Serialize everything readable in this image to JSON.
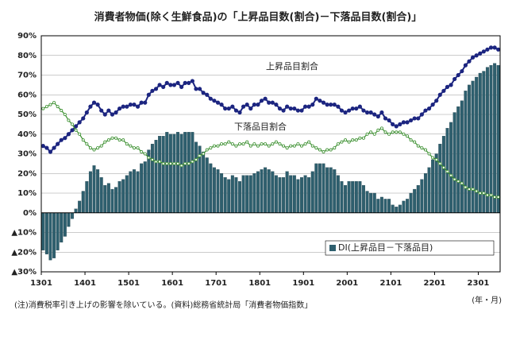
{
  "chart_data": {
    "type": "combo",
    "title": "消費者物価(除く生鮮食品)の「上昇品目数(割合)－下落品目数(割合)」",
    "annotations": [
      "上昇品目割合",
      "下落品目割合"
    ],
    "footnote": "(注)消費税率引き上げの影響を除いている。(資料)総務省統計局「消費者物価指数」",
    "x_unit": "(年・月)",
    "categories": [
      "1301",
      null,
      null,
      null,
      null,
      null,
      null,
      null,
      null,
      null,
      null,
      null,
      "1401",
      null,
      null,
      null,
      null,
      null,
      null,
      null,
      null,
      null,
      null,
      null,
      "1501",
      null,
      null,
      null,
      null,
      null,
      null,
      null,
      null,
      null,
      null,
      null,
      "1601",
      null,
      null,
      null,
      null,
      null,
      null,
      null,
      null,
      null,
      null,
      null,
      "1701",
      null,
      null,
      null,
      null,
      null,
      null,
      null,
      null,
      null,
      null,
      null,
      "1801",
      null,
      null,
      null,
      null,
      null,
      null,
      null,
      null,
      null,
      null,
      null,
      "1901",
      null,
      null,
      null,
      null,
      null,
      null,
      null,
      null,
      null,
      null,
      null,
      "2001",
      null,
      null,
      null,
      null,
      null,
      null,
      null,
      null,
      null,
      null,
      null,
      "2101",
      null,
      null,
      null,
      null,
      null,
      null,
      null,
      null,
      null,
      null,
      null,
      "2201",
      null,
      null,
      null,
      null,
      null,
      null,
      null,
      null,
      null,
      null,
      null,
      "2301",
      null,
      null,
      null,
      null,
      null
    ],
    "series": [
      {
        "name": "DI(上昇品目－下落品目)",
        "type": "bar",
        "color": "#2e5f6e",
        "values": [
          -19,
          -21,
          -24,
          -23,
          -19,
          -15,
          -12,
          -7,
          -3,
          2,
          6,
          11,
          16,
          21,
          24,
          22,
          18,
          14,
          15,
          12,
          13,
          16,
          17,
          19,
          21,
          22,
          21,
          25,
          26,
          32,
          35,
          37,
          39,
          39,
          41,
          40,
          40,
          41,
          40,
          41,
          41,
          41,
          36,
          34,
          31,
          28,
          25,
          23,
          22,
          20,
          18,
          17,
          19,
          18,
          16,
          19,
          19,
          19,
          20,
          21,
          22,
          23,
          22,
          21,
          19,
          18,
          18,
          21,
          19,
          19,
          17,
          18,
          19,
          18,
          21,
          25,
          25,
          25,
          23,
          23,
          22,
          19,
          16,
          14,
          16,
          16,
          16,
          16,
          14,
          11,
          10,
          10,
          7,
          8,
          7,
          7,
          4,
          3,
          4,
          6,
          7,
          10,
          12,
          14,
          17,
          20,
          23,
          27,
          30,
          35,
          39,
          43,
          46,
          51,
          54,
          57,
          62,
          65,
          67,
          69,
          71,
          72,
          74,
          75,
          76,
          75
        ]
      },
      {
        "name": "上昇品目割合",
        "type": "line",
        "color": "#1c2580",
        "values": [
          34,
          33,
          31,
          33,
          35,
          37,
          38,
          40,
          42,
          44,
          46,
          48,
          51,
          54,
          56,
          55,
          52,
          50,
          52,
          50,
          51,
          53,
          54,
          54,
          55,
          55,
          54,
          56,
          56,
          60,
          62,
          63,
          65,
          64,
          66,
          65,
          65,
          66,
          64,
          66,
          66,
          67,
          63,
          63,
          61,
          60,
          58,
          57,
          56,
          55,
          53,
          53,
          54,
          52,
          51,
          54,
          55,
          53,
          55,
          55,
          57,
          58,
          56,
          56,
          55,
          53,
          52,
          54,
          53,
          53,
          52,
          52,
          54,
          54,
          55,
          58,
          57,
          56,
          55,
          55,
          55,
          54,
          52,
          51,
          52,
          53,
          53,
          54,
          52,
          51,
          51,
          50,
          49,
          51,
          48,
          47,
          45,
          44,
          45,
          46,
          46,
          47,
          48,
          48,
          50,
          52,
          53,
          55,
          57,
          60,
          62,
          64,
          65,
          68,
          70,
          72,
          75,
          77,
          79,
          80,
          81,
          82,
          83,
          84,
          84,
          83
        ]
      },
      {
        "name": "下落品目割合",
        "type": "line",
        "color": "#3a8f2e",
        "values": [
          53,
          54,
          55,
          56,
          54,
          52,
          50,
          47,
          45,
          42,
          40,
          37,
          35,
          33,
          32,
          33,
          34,
          36,
          37,
          38,
          38,
          37,
          37,
          35,
          34,
          33,
          33,
          31,
          30,
          28,
          27,
          26,
          26,
          25,
          25,
          25,
          25,
          25,
          24,
          25,
          25,
          26,
          27,
          29,
          30,
          32,
          33,
          34,
          34,
          35,
          35,
          36,
          35,
          34,
          35,
          35,
          36,
          34,
          35,
          34,
          35,
          35,
          34,
          35,
          36,
          35,
          34,
          33,
          34,
          34,
          35,
          34,
          35,
          36,
          34,
          33,
          32,
          31,
          32,
          32,
          33,
          35,
          36,
          37,
          36,
          37,
          37,
          38,
          38,
          40,
          41,
          40,
          42,
          43,
          41,
          40,
          41,
          41,
          41,
          40,
          39,
          37,
          36,
          34,
          33,
          32,
          30,
          28,
          27,
          25,
          23,
          21,
          19,
          17,
          16,
          15,
          13,
          12,
          12,
          11,
          10,
          10,
          9,
          9,
          8,
          8
        ]
      }
    ],
    "ylim": [
      -30,
      90
    ],
    "yticks": [
      {
        "value": -30,
        "label": "▲30%"
      },
      {
        "value": -20,
        "label": "▲20%"
      },
      {
        "value": -10,
        "label": "▲10%"
      },
      {
        "value": 0,
        "label": "0%"
      },
      {
        "value": 10,
        "label": "10%"
      },
      {
        "value": 20,
        "label": "20%"
      },
      {
        "value": 30,
        "label": "30%"
      },
      {
        "value": 40,
        "label": "40%"
      },
      {
        "value": 50,
        "label": "50%"
      },
      {
        "value": 60,
        "label": "60%"
      },
      {
        "value": 70,
        "label": "70%"
      },
      {
        "value": 80,
        "label": "80%"
      },
      {
        "value": 90,
        "label": "90%"
      }
    ],
    "grid": true,
    "legend": "lower right"
  }
}
